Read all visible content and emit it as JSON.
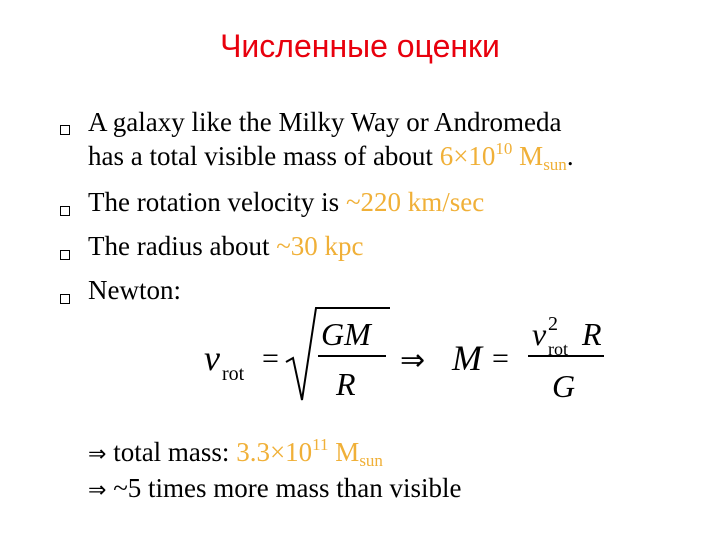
{
  "slide": {
    "title": "Численные оценки",
    "bullets": [
      {
        "text": "A galaxy like the Milky Way or Andromeda"
      },
      {
        "text": "has a total visible mass of about ",
        "value": "6×10",
        "exp": "10",
        "unit": "M",
        "unit_sub": "sun",
        "end": "."
      },
      {
        "text": "The rotation velocity is ",
        "value": "~220 km/sec"
      },
      {
        "text": "The radius about ",
        "value": "~30 kpc"
      },
      {
        "text": "Newton:"
      }
    ],
    "formula": {
      "v": "v",
      "rot": "rot",
      "eq": "=",
      "num": "GM",
      "den": "R",
      "implies": "⇒",
      "M": "M",
      "num2_v": "v",
      "num2_exp": "2",
      "num2_rot": "rot",
      "num2_R": "R",
      "den2": "G"
    },
    "result1": {
      "arrow": "⇒",
      "text": " total mass: ",
      "value": "3.3×10",
      "exp": "11",
      "unit": "M",
      "unit_sub": "sun"
    },
    "result2": {
      "arrow": "⇒",
      "text": " ~5 times more mass than visible"
    }
  }
}
